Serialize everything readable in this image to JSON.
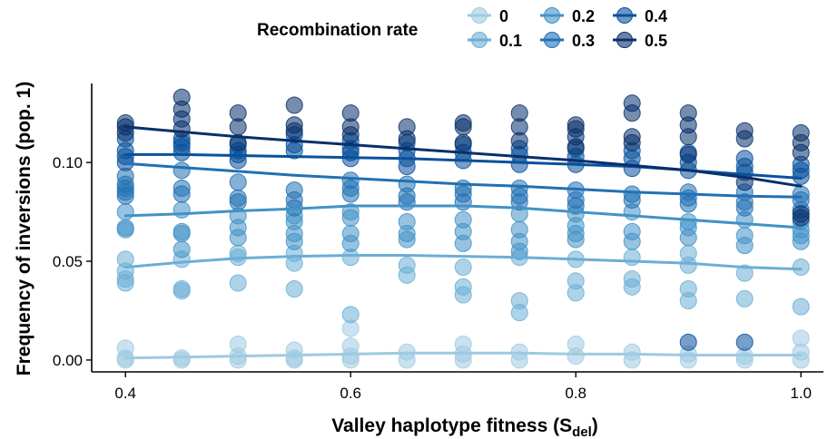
{
  "chart_data": {
    "type": "scatter",
    "xlabel": "Valley haplotype fitness (S",
    "xlabel_sub": "del",
    "xlabel_end": ")",
    "ylabel": "Frequency of inversions (pop. 1)",
    "xlim": [
      0.37,
      1.02
    ],
    "ylim": [
      -0.006,
      0.14
    ],
    "x_ticks": [
      0.4,
      0.6,
      0.8,
      1.0
    ],
    "x_tick_labels": [
      "0.4",
      "0.6",
      "0.8",
      "1.0"
    ],
    "y_ticks": [
      0.0,
      0.05,
      0.1
    ],
    "y_tick_labels": [
      "0.00",
      "0.05",
      "0.10"
    ],
    "grid": false,
    "legend": {
      "title": "Recombination rate",
      "position": "top",
      "entries": [
        "0",
        "0.2",
        "0.4",
        "0.1",
        "0.3",
        "0.5"
      ]
    },
    "x": [
      0.4,
      0.45,
      0.5,
      0.55,
      0.6,
      0.65,
      0.7,
      0.75,
      0.8,
      0.85,
      0.9,
      0.95,
      1.0
    ],
    "series": [
      {
        "name": "0",
        "color": "#9ecae1",
        "trend": [
          0.001,
          0.0015,
          0.002,
          0.0025,
          0.003,
          0.0035,
          0.0035,
          0.0035,
          0.003,
          0.003,
          0.0025,
          0.0025,
          0.0025
        ],
        "points": [
          [
            0.4,
            0.006
          ],
          [
            0.4,
            0.001
          ],
          [
            0.4,
            0.0
          ],
          [
            0.45,
            0.001
          ],
          [
            0.45,
            0.0
          ],
          [
            0.5,
            0.008
          ],
          [
            0.5,
            0.002
          ],
          [
            0.5,
            0.0
          ],
          [
            0.55,
            0.005
          ],
          [
            0.55,
            0.001
          ],
          [
            0.55,
            0.0
          ],
          [
            0.6,
            0.016
          ],
          [
            0.6,
            0.007
          ],
          [
            0.6,
            0.002
          ],
          [
            0.6,
            0.0
          ],
          [
            0.65,
            0.004
          ],
          [
            0.65,
            0.0
          ],
          [
            0.7,
            0.008
          ],
          [
            0.7,
            0.003
          ],
          [
            0.7,
            0.0
          ],
          [
            0.75,
            0.004
          ],
          [
            0.75,
            0.0
          ],
          [
            0.8,
            0.008
          ],
          [
            0.8,
            0.002
          ],
          [
            0.85,
            0.004
          ],
          [
            0.85,
            0.0
          ],
          [
            0.9,
            0.003
          ],
          [
            0.9,
            0.0
          ],
          [
            0.95,
            0.002
          ],
          [
            0.95,
            0.0
          ],
          [
            1.0,
            0.011
          ],
          [
            1.0,
            0.004
          ],
          [
            1.0,
            0.0
          ]
        ]
      },
      {
        "name": "0.1",
        "color": "#6baed6",
        "trend": [
          0.047,
          0.0495,
          0.0515,
          0.0525,
          0.053,
          0.053,
          0.0525,
          0.052,
          0.051,
          0.05,
          0.049,
          0.047,
          0.046
        ],
        "points": [
          [
            0.4,
            0.051
          ],
          [
            0.4,
            0.045
          ],
          [
            0.4,
            0.041
          ],
          [
            0.4,
            0.039
          ],
          [
            0.45,
            0.051
          ],
          [
            0.45,
            0.036
          ],
          [
            0.45,
            0.035
          ],
          [
            0.5,
            0.054
          ],
          [
            0.5,
            0.052
          ],
          [
            0.5,
            0.039
          ],
          [
            0.55,
            0.054
          ],
          [
            0.55,
            0.049
          ],
          [
            0.55,
            0.036
          ],
          [
            0.6,
            0.052
          ],
          [
            0.6,
            0.023
          ],
          [
            0.65,
            0.048
          ],
          [
            0.65,
            0.043
          ],
          [
            0.7,
            0.047
          ],
          [
            0.7,
            0.037
          ],
          [
            0.7,
            0.033
          ],
          [
            0.75,
            0.052
          ],
          [
            0.75,
            0.03
          ],
          [
            0.75,
            0.024
          ],
          [
            0.8,
            0.051
          ],
          [
            0.8,
            0.04
          ],
          [
            0.8,
            0.034
          ],
          [
            0.85,
            0.052
          ],
          [
            0.85,
            0.041
          ],
          [
            0.85,
            0.037
          ],
          [
            0.9,
            0.054
          ],
          [
            0.9,
            0.048
          ],
          [
            0.9,
            0.036
          ],
          [
            0.9,
            0.03
          ],
          [
            0.95,
            0.044
          ],
          [
            0.95,
            0.031
          ],
          [
            1.0,
            0.047
          ],
          [
            1.0,
            0.027
          ]
        ]
      },
      {
        "name": "0.2",
        "color": "#4292c6",
        "trend": [
          0.073,
          0.074,
          0.0755,
          0.0765,
          0.078,
          0.078,
          0.078,
          0.077,
          0.075,
          0.073,
          0.071,
          0.069,
          0.067
        ],
        "points": [
          [
            0.4,
            0.075
          ],
          [
            0.4,
            0.067
          ],
          [
            0.4,
            0.066
          ],
          [
            0.45,
            0.076
          ],
          [
            0.45,
            0.065
          ],
          [
            0.45,
            0.064
          ],
          [
            0.45,
            0.056
          ],
          [
            0.5,
            0.073
          ],
          [
            0.5,
            0.067
          ],
          [
            0.5,
            0.062
          ],
          [
            0.55,
            0.073
          ],
          [
            0.55,
            0.07
          ],
          [
            0.55,
            0.064
          ],
          [
            0.55,
            0.06
          ],
          [
            0.6,
            0.075
          ],
          [
            0.6,
            0.072
          ],
          [
            0.6,
            0.064
          ],
          [
            0.6,
            0.059
          ],
          [
            0.65,
            0.07
          ],
          [
            0.65,
            0.064
          ],
          [
            0.65,
            0.061
          ],
          [
            0.7,
            0.071
          ],
          [
            0.7,
            0.065
          ],
          [
            0.7,
            0.059
          ],
          [
            0.75,
            0.074
          ],
          [
            0.75,
            0.066
          ],
          [
            0.75,
            0.06
          ],
          [
            0.75,
            0.055
          ],
          [
            0.8,
            0.074
          ],
          [
            0.8,
            0.068
          ],
          [
            0.8,
            0.064
          ],
          [
            0.8,
            0.061
          ],
          [
            0.85,
            0.075
          ],
          [
            0.85,
            0.065
          ],
          [
            0.85,
            0.06
          ],
          [
            0.9,
            0.07
          ],
          [
            0.9,
            0.067
          ],
          [
            0.9,
            0.062
          ],
          [
            0.95,
            0.071
          ],
          [
            0.95,
            0.063
          ],
          [
            0.95,
            0.058
          ],
          [
            1.0,
            0.07
          ],
          [
            1.0,
            0.066
          ],
          [
            1.0,
            0.063
          ],
          [
            1.0,
            0.06
          ]
        ]
      },
      {
        "name": "0.3",
        "color": "#2171b5",
        "trend": [
          0.0995,
          0.0975,
          0.0955,
          0.0935,
          0.092,
          0.0905,
          0.089,
          0.088,
          0.0865,
          0.085,
          0.084,
          0.083,
          0.0825
        ],
        "points": [
          [
            0.4,
            0.093
          ],
          [
            0.4,
            0.089
          ],
          [
            0.4,
            0.087
          ],
          [
            0.4,
            0.085
          ],
          [
            0.4,
            0.083
          ],
          [
            0.45,
            0.096
          ],
          [
            0.45,
            0.087
          ],
          [
            0.45,
            0.084
          ],
          [
            0.5,
            0.09
          ],
          [
            0.5,
            0.082
          ],
          [
            0.5,
            0.08
          ],
          [
            0.55,
            0.086
          ],
          [
            0.55,
            0.081
          ],
          [
            0.55,
            0.077
          ],
          [
            0.6,
            0.091
          ],
          [
            0.6,
            0.087
          ],
          [
            0.6,
            0.084
          ],
          [
            0.65,
            0.089
          ],
          [
            0.65,
            0.083
          ],
          [
            0.65,
            0.08
          ],
          [
            0.7,
            0.087
          ],
          [
            0.7,
            0.084
          ],
          [
            0.7,
            0.08
          ],
          [
            0.75,
            0.087
          ],
          [
            0.75,
            0.083
          ],
          [
            0.75,
            0.08
          ],
          [
            0.8,
            0.086
          ],
          [
            0.8,
            0.081
          ],
          [
            0.8,
            0.078
          ],
          [
            0.85,
            0.084
          ],
          [
            0.85,
            0.081
          ],
          [
            0.9,
            0.085
          ],
          [
            0.9,
            0.082
          ],
          [
            0.9,
            0.079
          ],
          [
            0.95,
            0.085
          ],
          [
            0.95,
            0.08
          ],
          [
            0.95,
            0.077
          ],
          [
            1.0,
            0.084
          ],
          [
            1.0,
            0.081
          ],
          [
            1.0,
            0.076
          ]
        ]
      },
      {
        "name": "0.4",
        "color": "#08519c",
        "trend": [
          0.104,
          0.104,
          0.1035,
          0.103,
          0.1025,
          0.102,
          0.101,
          0.1,
          0.099,
          0.098,
          0.096,
          0.094,
          0.092
        ],
        "points": [
          [
            0.4,
            0.112
          ],
          [
            0.4,
            0.106
          ],
          [
            0.4,
            0.103
          ],
          [
            0.4,
            0.1
          ],
          [
            0.45,
            0.112
          ],
          [
            0.45,
            0.11
          ],
          [
            0.45,
            0.108
          ],
          [
            0.45,
            0.105
          ],
          [
            0.5,
            0.109
          ],
          [
            0.5,
            0.106
          ],
          [
            0.5,
            0.104
          ],
          [
            0.5,
            0.101
          ],
          [
            0.55,
            0.114
          ],
          [
            0.55,
            0.109
          ],
          [
            0.55,
            0.106
          ],
          [
            0.6,
            0.111
          ],
          [
            0.6,
            0.107
          ],
          [
            0.6,
            0.105
          ],
          [
            0.6,
            0.102
          ],
          [
            0.65,
            0.11
          ],
          [
            0.65,
            0.106
          ],
          [
            0.65,
            0.102
          ],
          [
            0.65,
            0.098
          ],
          [
            0.7,
            0.109
          ],
          [
            0.7,
            0.105
          ],
          [
            0.7,
            0.101
          ],
          [
            0.75,
            0.107
          ],
          [
            0.75,
            0.104
          ],
          [
            0.75,
            0.099
          ],
          [
            0.8,
            0.107
          ],
          [
            0.8,
            0.103
          ],
          [
            0.8,
            0.099
          ],
          [
            0.85,
            0.106
          ],
          [
            0.85,
            0.102
          ],
          [
            0.85,
            0.097
          ],
          [
            0.9,
            0.105
          ],
          [
            0.9,
            0.1
          ],
          [
            0.9,
            0.096
          ],
          [
            0.9,
            0.009
          ],
          [
            0.95,
            0.102
          ],
          [
            0.95,
            0.098
          ],
          [
            0.95,
            0.095
          ],
          [
            0.95,
            0.009
          ],
          [
            1.0,
            0.099
          ],
          [
            1.0,
            0.096
          ],
          [
            1.0,
            0.093
          ]
        ]
      },
      {
        "name": "0.5",
        "color": "#08306b",
        "trend": [
          0.118,
          0.1155,
          0.113,
          0.111,
          0.109,
          0.107,
          0.105,
          0.103,
          0.101,
          0.0985,
          0.096,
          0.0925,
          0.088
        ],
        "points": [
          [
            0.4,
            0.12
          ],
          [
            0.4,
            0.118
          ],
          [
            0.4,
            0.115
          ],
          [
            0.45,
            0.133
          ],
          [
            0.45,
            0.127
          ],
          [
            0.45,
            0.122
          ],
          [
            0.45,
            0.117
          ],
          [
            0.5,
            0.125
          ],
          [
            0.5,
            0.118
          ],
          [
            0.5,
            0.11
          ],
          [
            0.55,
            0.129
          ],
          [
            0.55,
            0.119
          ],
          [
            0.55,
            0.116
          ],
          [
            0.6,
            0.125
          ],
          [
            0.6,
            0.118
          ],
          [
            0.6,
            0.114
          ],
          [
            0.65,
            0.118
          ],
          [
            0.65,
            0.112
          ],
          [
            0.7,
            0.12
          ],
          [
            0.7,
            0.118
          ],
          [
            0.7,
            0.11
          ],
          [
            0.75,
            0.125
          ],
          [
            0.75,
            0.118
          ],
          [
            0.75,
            0.111
          ],
          [
            0.8,
            0.119
          ],
          [
            0.8,
            0.117
          ],
          [
            0.8,
            0.113
          ],
          [
            0.8,
            0.108
          ],
          [
            0.85,
            0.13
          ],
          [
            0.85,
            0.125
          ],
          [
            0.85,
            0.113
          ],
          [
            0.85,
            0.11
          ],
          [
            0.9,
            0.125
          ],
          [
            0.9,
            0.119
          ],
          [
            0.9,
            0.113
          ],
          [
            0.9,
            0.104
          ],
          [
            0.95,
            0.116
          ],
          [
            0.95,
            0.112
          ],
          [
            0.95,
            0.09
          ],
          [
            1.0,
            0.115
          ],
          [
            1.0,
            0.11
          ],
          [
            1.0,
            0.105
          ],
          [
            1.0,
            0.074
          ],
          [
            1.0,
            0.072
          ]
        ]
      }
    ]
  }
}
